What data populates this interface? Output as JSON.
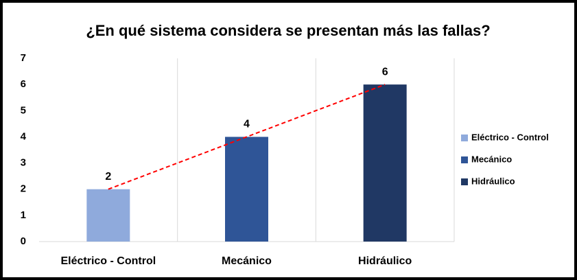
{
  "chart_data": {
    "type": "bar",
    "title": "¿En qué sistema considera se presentan más las fallas?",
    "categories": [
      "Eléctrico - Control",
      "Mecánico",
      "Hidráulico"
    ],
    "values": [
      2,
      4,
      6
    ],
    "colors": [
      "#8faadc",
      "#2f5597",
      "#203864"
    ],
    "ylim": [
      0,
      7
    ],
    "yticks": [
      0,
      1,
      2,
      3,
      4,
      5,
      6,
      7
    ],
    "grid": false,
    "legend": "right",
    "trendline": true,
    "trendline_color": "#ff0000"
  }
}
